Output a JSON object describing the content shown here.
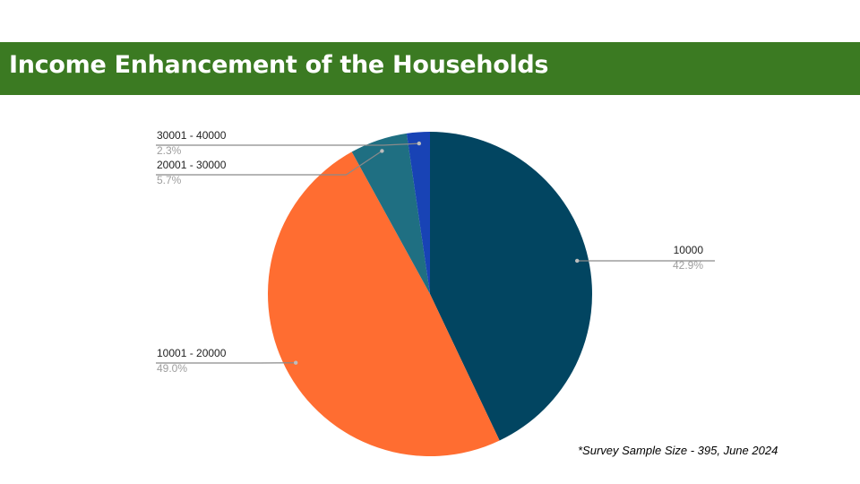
{
  "header": {
    "title": "Income Enhancement of the Households",
    "bar_color": "#3b7a22"
  },
  "footnote": "*Survey Sample Size - 395, June 2024",
  "chart_data": {
    "type": "pie",
    "title": "",
    "slices": [
      {
        "label": "10000",
        "percent_label": "42.9%",
        "value": 42.9,
        "color": "#024561"
      },
      {
        "label": "10001 - 20000",
        "percent_label": "49.0%",
        "value": 49.0,
        "color": "#ff6d31"
      },
      {
        "label": "20001 - 30000",
        "percent_label": "5.7%",
        "value": 5.7,
        "color": "#1f6f82"
      },
      {
        "label": "30001 - 40000",
        "percent_label": "2.3%",
        "value": 2.3,
        "color": "#1843b5"
      }
    ],
    "start": "12 o'clock",
    "direction": "clockwise",
    "legend": "none (outside labels with leader lines)"
  }
}
